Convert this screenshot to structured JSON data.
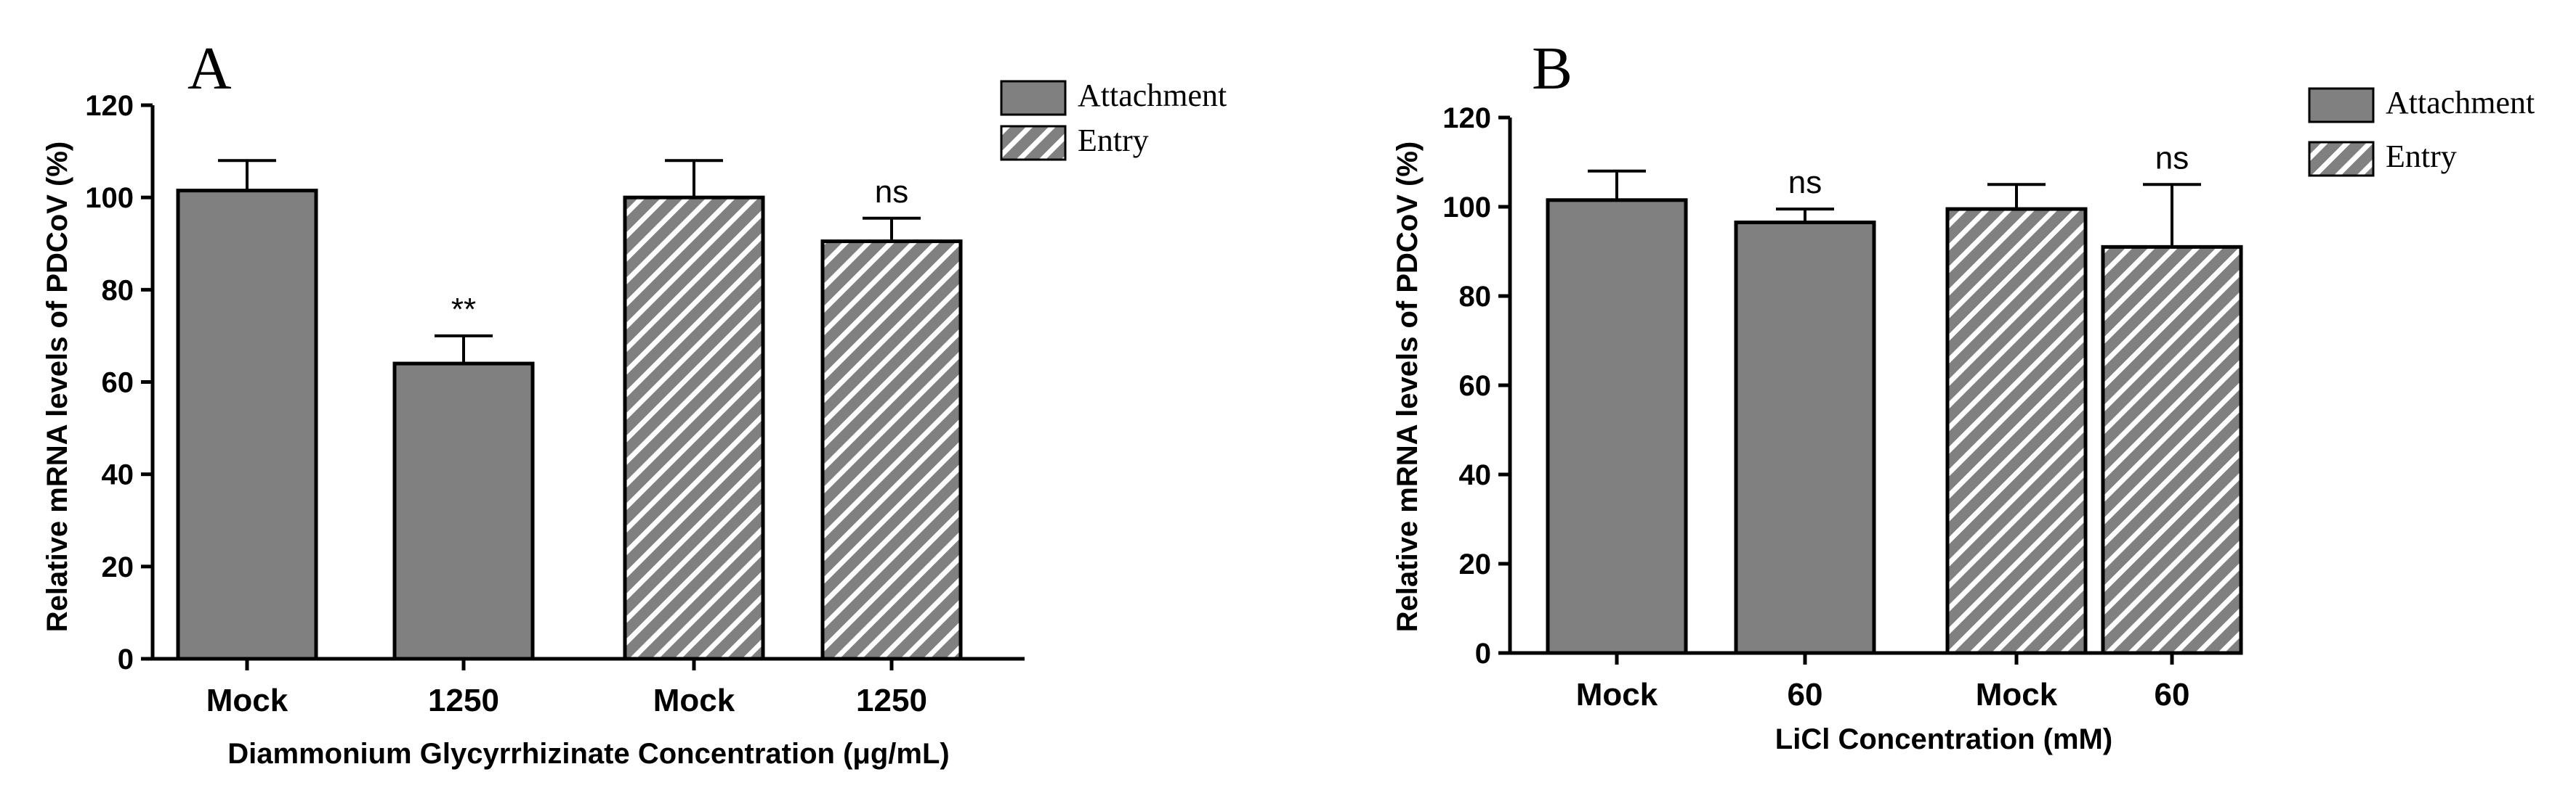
{
  "colors": {
    "bar_fill": "#808080",
    "stroke": "#000000",
    "hatch": "#ffffff"
  },
  "chart_data": [
    {
      "type": "bar",
      "panel_label": "A",
      "categories": [
        "Mock",
        "1250",
        "Mock",
        "1250"
      ],
      "values": [
        101.5,
        64,
        100,
        90.5
      ],
      "errors": [
        6.5,
        6,
        8,
        5
      ],
      "series_of_bar": [
        "Attachment",
        "Attachment",
        "Entry",
        "Entry"
      ],
      "significance": [
        "",
        "**",
        "",
        "ns"
      ],
      "ylabel": "Relative mRNA levels of PDCoV (%)",
      "xlabel": "Diammonium Glycyrrhizinate Concentration (μg/mL)",
      "ylim": [
        0,
        120
      ],
      "yticks": [
        0,
        20,
        40,
        60,
        80,
        100,
        120
      ],
      "legend": [
        "Attachment",
        "Entry"
      ],
      "legend_position": "top-right"
    },
    {
      "type": "bar",
      "panel_label": "B",
      "categories": [
        "Mock",
        "60",
        "Mock",
        "60"
      ],
      "values": [
        101.5,
        96.5,
        99.5,
        91
      ],
      "errors": [
        6.5,
        3,
        5.5,
        14
      ],
      "series_of_bar": [
        "Attachment",
        "Attachment",
        "Entry",
        "Entry"
      ],
      "significance": [
        "",
        "ns",
        "",
        "ns"
      ],
      "ylabel": "Relative mRNA levels of PDCoV (%)",
      "xlabel": "LiCl Concentration (mM)",
      "ylim": [
        0,
        120
      ],
      "yticks": [
        0,
        20,
        40,
        60,
        80,
        100,
        120
      ],
      "legend": [
        "Attachment",
        "Entry"
      ],
      "legend_position": "top-right"
    }
  ]
}
